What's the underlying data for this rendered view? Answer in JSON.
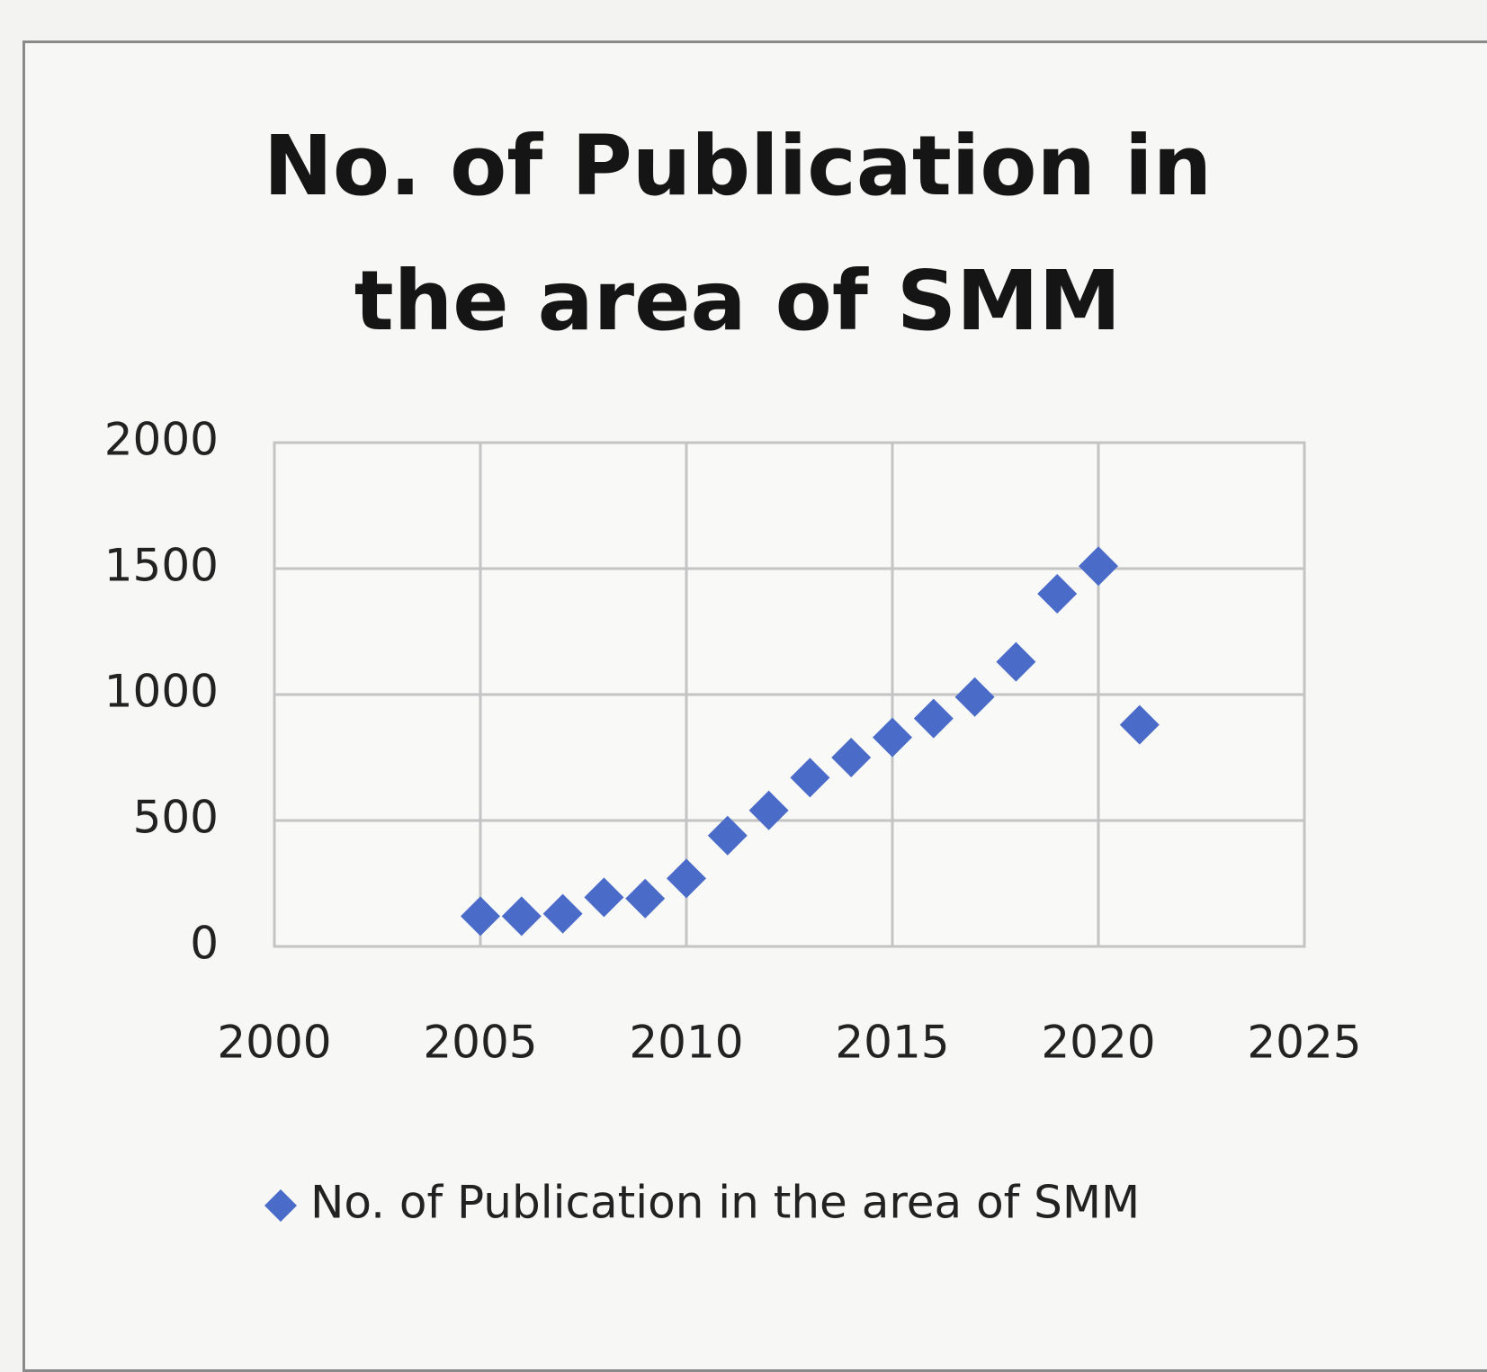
{
  "chart_data": {
    "type": "scatter",
    "title": "No. of Publication in the area of SMM",
    "x": [
      2005,
      2006,
      2007,
      2008,
      2009,
      2010,
      2011,
      2012,
      2013,
      2014,
      2015,
      2016,
      2017,
      2018,
      2019,
      2020,
      2021
    ],
    "series": [
      {
        "name": "No. of Publication in the area of SMM",
        "color": "#4a6cc8",
        "values": [
          120,
          120,
          130,
          195,
          190,
          270,
          440,
          540,
          670,
          750,
          830,
          905,
          990,
          1130,
          1400,
          1510,
          880
        ]
      }
    ],
    "xlim": [
      2000,
      2025
    ],
    "xticks": [
      2000,
      2005,
      2010,
      2015,
      2020,
      2025
    ],
    "ylim": [
      0,
      2000
    ],
    "yticks": [
      0,
      500,
      1000,
      1500,
      2000
    ],
    "grid": true,
    "legend": "bottom"
  }
}
